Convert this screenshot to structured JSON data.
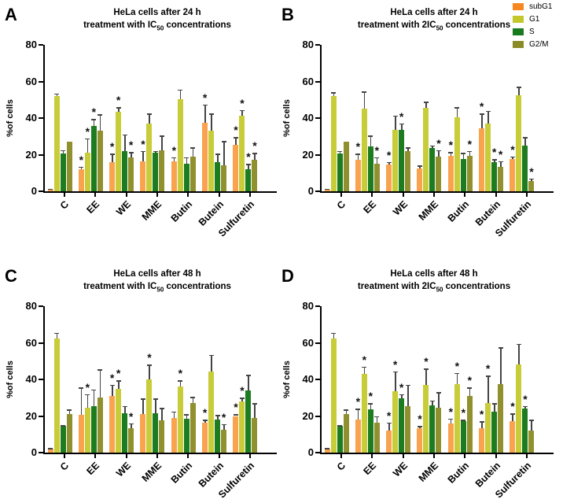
{
  "legend": {
    "entries": [
      {
        "label": "subG1",
        "color": "#F6871F"
      },
      {
        "label": "G1",
        "color": "#C2C72A"
      },
      {
        "label": "S",
        "color": "#177A1E"
      },
      {
        "label": "G2/M",
        "color": "#8B8A25"
      }
    ]
  },
  "chart_data": [
    {
      "panel_label": "A",
      "type": "bar",
      "title_line1": "HeLa cells after 24 h",
      "title_line2_prefix": "treatment with IC",
      "title_line2_sub": "50",
      "title_line2_suffix": " concentrations",
      "ylabel": "%of cells",
      "ylim": [
        0,
        80
      ],
      "yticks": [
        0,
        20,
        40,
        60,
        80
      ],
      "categories": [
        "C",
        "EE",
        "WE",
        "MME",
        "Butin",
        "Butein",
        "Sulfuretin"
      ],
      "series": [
        {
          "name": "subG1",
          "color": "#FAA34F",
          "values": [
            1,
            12,
            16,
            16.5,
            16.5,
            37.5,
            25.5
          ],
          "errors": [
            0.5,
            1.5,
            4.5,
            5.5,
            2,
            10,
            4
          ],
          "sig": [
            0,
            1,
            1,
            1,
            1,
            1,
            1
          ]
        },
        {
          "name": "G1",
          "color": "#C8CC38",
          "values": [
            52,
            21,
            43.5,
            37,
            50.5,
            33,
            41.5
          ],
          "errors": [
            1.5,
            8,
            2.5,
            5.5,
            5,
            9.5,
            3
          ],
          "sig": [
            0,
            1,
            1,
            0,
            0,
            0,
            1
          ]
        },
        {
          "name": "S",
          "color": "#1E7C20",
          "values": [
            20.5,
            35.5,
            22,
            21,
            15,
            16,
            12
          ],
          "errors": [
            2,
            4,
            9,
            1,
            3.5,
            4.5,
            3
          ],
          "sig": [
            0,
            1,
            0,
            0,
            0,
            0,
            1
          ]
        },
        {
          "name": "G2/M",
          "color": "#91902F",
          "values": [
            27,
            33,
            18.5,
            22.5,
            19,
            14,
            17
          ],
          "errors": [
            0,
            9,
            3,
            8,
            5,
            13.5,
            4
          ],
          "sig": [
            0,
            0,
            1,
            0,
            0,
            0,
            1
          ]
        }
      ]
    },
    {
      "panel_label": "B",
      "type": "bar",
      "title_line1": "HeLa cells after 24 h",
      "title_line2_prefix": "treatment with 2IC",
      "title_line2_sub": "50",
      "title_line2_suffix": " concentrations",
      "ylabel": "%of cells",
      "ylim": [
        0,
        80
      ],
      "yticks": [
        0,
        20,
        40,
        60,
        80
      ],
      "categories": [
        "C",
        "EE",
        "WE",
        "MME",
        "Butin",
        "Butein",
        "Sulfuretin"
      ],
      "series": [
        {
          "name": "subG1",
          "color": "#FAA34F",
          "values": [
            1,
            17,
            14.5,
            12.5,
            19.5,
            34.5,
            17.5
          ],
          "errors": [
            0.5,
            3.5,
            1.5,
            1.5,
            2,
            8,
            1.5
          ],
          "sig": [
            0,
            1,
            1,
            0,
            1,
            1,
            1
          ]
        },
        {
          "name": "G1",
          "color": "#C8CC38",
          "values": [
            52,
            45,
            33.5,
            45.5,
            40.5,
            37,
            52.5
          ],
          "errors": [
            2,
            9.5,
            8,
            3.5,
            5.5,
            7,
            4.5
          ],
          "sig": [
            0,
            0,
            0,
            0,
            0,
            0,
            0
          ]
        },
        {
          "name": "S",
          "color": "#1E7C20",
          "values": [
            20.5,
            24.5,
            33.5,
            23.5,
            17.5,
            16,
            25
          ],
          "errors": [
            1.5,
            6,
            3.5,
            1.5,
            3.5,
            1.5,
            4.5
          ],
          "sig": [
            0,
            0,
            1,
            0,
            0,
            1,
            0
          ]
        },
        {
          "name": "G2/M",
          "color": "#91902F",
          "values": [
            27,
            15,
            22,
            19,
            19.5,
            13.5,
            5.5
          ],
          "errors": [
            0,
            3.5,
            2,
            3.5,
            2.5,
            3,
            1.5
          ],
          "sig": [
            0,
            1,
            0,
            1,
            1,
            1,
            1
          ]
        }
      ]
    },
    {
      "panel_label": "C",
      "type": "bar",
      "title_line1": "HeLa cells after 48 h",
      "title_line2_prefix": "treatment with IC",
      "title_line2_sub": "50",
      "title_line2_suffix": " concentrations",
      "ylabel": "%of cells",
      "ylim": [
        0,
        80
      ],
      "yticks": [
        0,
        20,
        40,
        60,
        80
      ],
      "categories": [
        "C",
        "EE",
        "WE",
        "MME",
        "Butin",
        "Butein",
        "Sulfuretin"
      ],
      "series": [
        {
          "name": "subG1",
          "color": "#FAA34F",
          "values": [
            2,
            20.5,
            31,
            21,
            19,
            16.5,
            20
          ],
          "errors": [
            0.5,
            15,
            6,
            8.5,
            3.5,
            1.5,
            1
          ],
          "sig": [
            0,
            0,
            1,
            0,
            0,
            1,
            1
          ]
        },
        {
          "name": "G1",
          "color": "#C8CC38",
          "values": [
            62.5,
            24.5,
            35,
            40,
            36,
            44.5,
            28
          ],
          "errors": [
            3,
            7.5,
            4.5,
            8,
            3.5,
            9,
            2
          ],
          "sig": [
            0,
            1,
            1,
            1,
            1,
            0,
            1
          ]
        },
        {
          "name": "S",
          "color": "#1E7C20",
          "values": [
            14.5,
            25.5,
            21.5,
            21.5,
            18.5,
            18,
            34
          ],
          "errors": [
            0.5,
            9,
            4,
            8,
            2.5,
            2.5,
            8.5
          ],
          "sig": [
            0,
            0,
            0,
            0,
            0,
            0,
            0
          ]
        },
        {
          "name": "G2/M",
          "color": "#91902F",
          "values": [
            21,
            30,
            13.5,
            17.5,
            27,
            12.5,
            19
          ],
          "errors": [
            2.5,
            15.5,
            2.5,
            7,
            3.5,
            3,
            8
          ],
          "sig": [
            0,
            0,
            1,
            0,
            0,
            1,
            0
          ]
        }
      ]
    },
    {
      "panel_label": "D",
      "type": "bar",
      "title_line1": "HeLa cells after 48 h",
      "title_line2_prefix": "treatment with 2IC",
      "title_line2_sub": "50",
      "title_line2_suffix": " concentrations",
      "ylabel": "%of cells",
      "ylim": [
        0,
        80
      ],
      "yticks": [
        0,
        20,
        40,
        60,
        80
      ],
      "categories": [
        "C",
        "EE",
        "WE",
        "MME",
        "Butin",
        "Butein",
        "Sulfuretin"
      ],
      "series": [
        {
          "name": "subG1",
          "color": "#FAA34F",
          "values": [
            2,
            18,
            12,
            13.5,
            16,
            13.5,
            17
          ],
          "errors": [
            0.5,
            6,
            4.5,
            1,
            2.5,
            3.5,
            4.5
          ],
          "sig": [
            0,
            1,
            1,
            1,
            1,
            1,
            1
          ]
        },
        {
          "name": "G1",
          "color": "#C8CC38",
          "values": [
            62.5,
            43,
            33.5,
            37,
            37.5,
            27,
            48
          ],
          "errors": [
            3,
            4,
            11,
            9,
            6,
            15,
            11.5
          ],
          "sig": [
            0,
            1,
            1,
            1,
            1,
            1,
            0
          ]
        },
        {
          "name": "S",
          "color": "#1E7C20",
          "values": [
            14.5,
            23.5,
            29.5,
            26,
            17,
            22.5,
            24
          ],
          "errors": [
            0.5,
            3.5,
            2.5,
            2.5,
            1,
            4.5,
            1.5
          ],
          "sig": [
            0,
            1,
            1,
            0,
            1,
            0,
            1
          ]
        },
        {
          "name": "G2/M",
          "color": "#91902F",
          "values": [
            21,
            16.5,
            25.5,
            24.5,
            31,
            37.5,
            12
          ],
          "errors": [
            2.5,
            3.5,
            11.5,
            8.5,
            4.5,
            20,
            6
          ],
          "sig": [
            0,
            0,
            0,
            0,
            1,
            0,
            0
          ]
        }
      ]
    }
  ]
}
